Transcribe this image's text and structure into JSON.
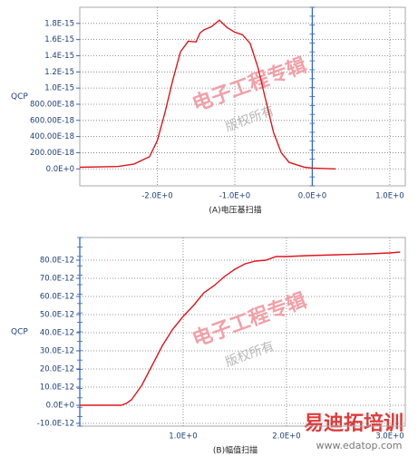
{
  "chart_data": [
    {
      "type": "line",
      "caption": "(A)电压基扫描",
      "ylabel": "QCP",
      "watermark": [
        "电子工程专辑",
        "版权所有"
      ],
      "xlim": [
        -3.0,
        1.2
      ],
      "ylim": [
        -2.1e-16,
        2e-15
      ],
      "grid": true,
      "xticks": [
        {
          "value": -2.0,
          "label": "-2.0E+0"
        },
        {
          "value": -1.0,
          "label": "-1.0E+0"
        },
        {
          "value": 0.0,
          "label": "0.0E+0"
        },
        {
          "value": 1.0,
          "label": "1.0E+0"
        }
      ],
      "yticks": [
        {
          "value": 0,
          "label": "0.0E+0"
        },
        {
          "value": 2e-16,
          "label": "200.00E-18"
        },
        {
          "value": 4e-16,
          "label": "400.00E-18"
        },
        {
          "value": 6e-16,
          "label": "600.00E-18"
        },
        {
          "value": 8e-16,
          "label": "800.00E-18"
        },
        {
          "value": 1e-15,
          "label": "1.0E-15"
        },
        {
          "value": 1.2e-15,
          "label": "1.2E-15"
        },
        {
          "value": 1.4e-15,
          "label": "1.4E-15"
        },
        {
          "value": 1.6e-15,
          "label": "1.6E-15"
        },
        {
          "value": 1.8e-15,
          "label": "1.8E-15"
        }
      ],
      "x": [
        -3.0,
        -2.5,
        -2.3,
        -2.1,
        -2.0,
        -1.9,
        -1.8,
        -1.7,
        -1.6,
        -1.5,
        -1.45,
        -1.4,
        -1.3,
        -1.2,
        -1.1,
        -1.0,
        -0.9,
        -0.8,
        -0.7,
        -0.6,
        -0.5,
        -0.4,
        -0.3,
        -0.1,
        0.0,
        0.3
      ],
      "series": [
        {
          "color": "#e0161e",
          "values": [
            2e-17,
            3e-17,
            6e-17,
            1.5e-16,
            3.5e-16,
            7e-16,
            1.1e-15,
            1.45e-15,
            1.58e-15,
            1.57e-15,
            1.68e-15,
            1.72e-15,
            1.76e-15,
            1.84e-15,
            1.75e-15,
            1.69e-15,
            1.66e-15,
            1.55e-15,
            1.25e-15,
            8.5e-16,
            4.5e-16,
            2e-16,
            8e-17,
            2e-17,
            1e-17,
            0
          ]
        }
      ]
    },
    {
      "type": "line",
      "caption": "(B)幅值扫描",
      "ylabel": "QCP",
      "watermark": [
        "电子工程专辑",
        "版权所有"
      ],
      "xlim": [
        0,
        3.15
      ],
      "ylim": [
        -1.15e-11,
        9.25e-11
      ],
      "grid": true,
      "xticks": [
        {
          "value": 1.0,
          "label": "1.0E+0"
        },
        {
          "value": 2.0,
          "label": "2.0E+0"
        },
        {
          "value": 3.0,
          "label": "3.0E+0"
        }
      ],
      "yticks": [
        {
          "value": -1e-11,
          "label": "-10.0E-12"
        },
        {
          "value": 0,
          "label": "0.0E+0"
        },
        {
          "value": 1e-11,
          "label": "10.0E-12"
        },
        {
          "value": 2e-11,
          "label": "20.0E-12"
        },
        {
          "value": 3e-11,
          "label": "30.0E-12"
        },
        {
          "value": 4e-11,
          "label": "40.0E-12"
        },
        {
          "value": 5e-11,
          "label": "50.0E-12"
        },
        {
          "value": 6e-11,
          "label": "60.0E-12"
        },
        {
          "value": 7e-11,
          "label": "70.0E-12"
        },
        {
          "value": 8e-11,
          "label": "80.0E-12"
        }
      ],
      "x": [
        0,
        0.2,
        0.4,
        0.45,
        0.5,
        0.6,
        0.7,
        0.8,
        0.9,
        1.0,
        1.1,
        1.2,
        1.3,
        1.4,
        1.5,
        1.6,
        1.7,
        1.8,
        1.9,
        2.0,
        2.2,
        2.5,
        2.8,
        3.0,
        3.1
      ],
      "series": [
        {
          "color": "#e0161e",
          "values": [
            0,
            0,
            0,
            1e-12,
            3e-12,
            1.1e-11,
            2.2e-11,
            3.3e-11,
            4.2e-11,
            4.9e-11,
            5.5e-11,
            6.2e-11,
            6.6e-11,
            7.1e-11,
            7.5e-11,
            7.8e-11,
            7.95e-11,
            8e-11,
            8.2e-11,
            8.2e-11,
            8.25e-11,
            8.3e-11,
            8.35e-11,
            8.4e-11,
            8.45e-11
          ]
        }
      ]
    }
  ],
  "logo": {
    "name": "易迪拓培训",
    "url": "www.edatop.com"
  }
}
